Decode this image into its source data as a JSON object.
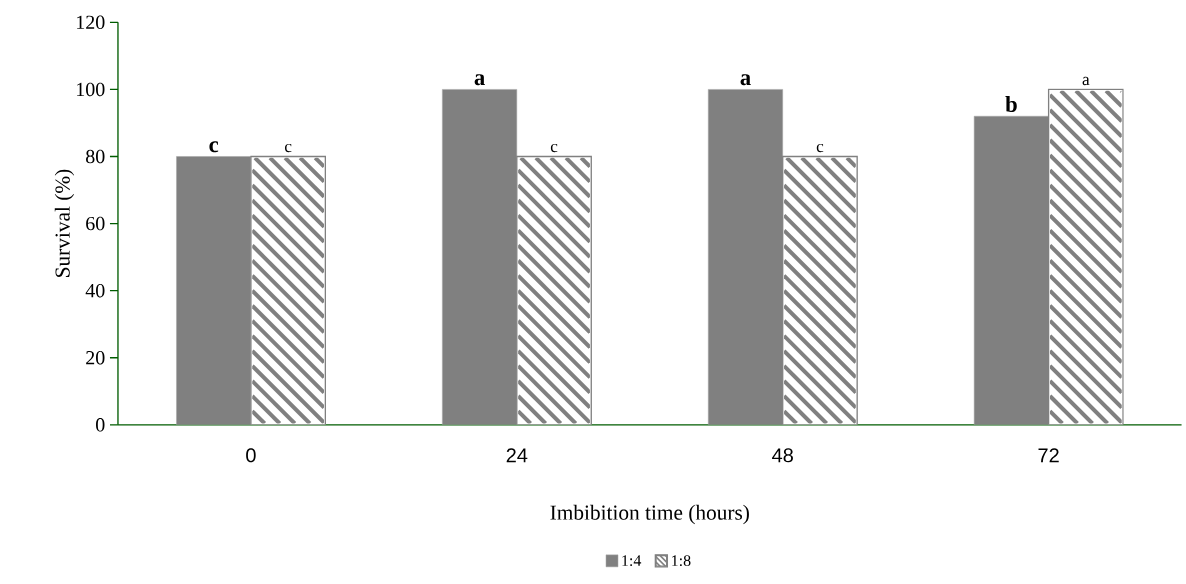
{
  "chart_data": {
    "type": "bar",
    "xlabel": "Imbibition time (hours)",
    "ylabel": "Survival (%)",
    "categories": [
      "0",
      "24",
      "48",
      "72"
    ],
    "series": [
      {
        "name": "1:4",
        "color": "#808080",
        "values": [
          80,
          100,
          100,
          92
        ],
        "value_labels": [
          "c",
          "a",
          "a",
          "b"
        ]
      },
      {
        "name": "1:8",
        "color": "#808080",
        "values": [
          80,
          80,
          80,
          100
        ],
        "value_labels": [
          "c",
          "c",
          "c",
          "a"
        ]
      }
    ],
    "ylim": [
      0,
      120
    ],
    "yticks": [
      0,
      20,
      40,
      60,
      80,
      100,
      120
    ],
    "grid": false,
    "legend": "bottom"
  }
}
